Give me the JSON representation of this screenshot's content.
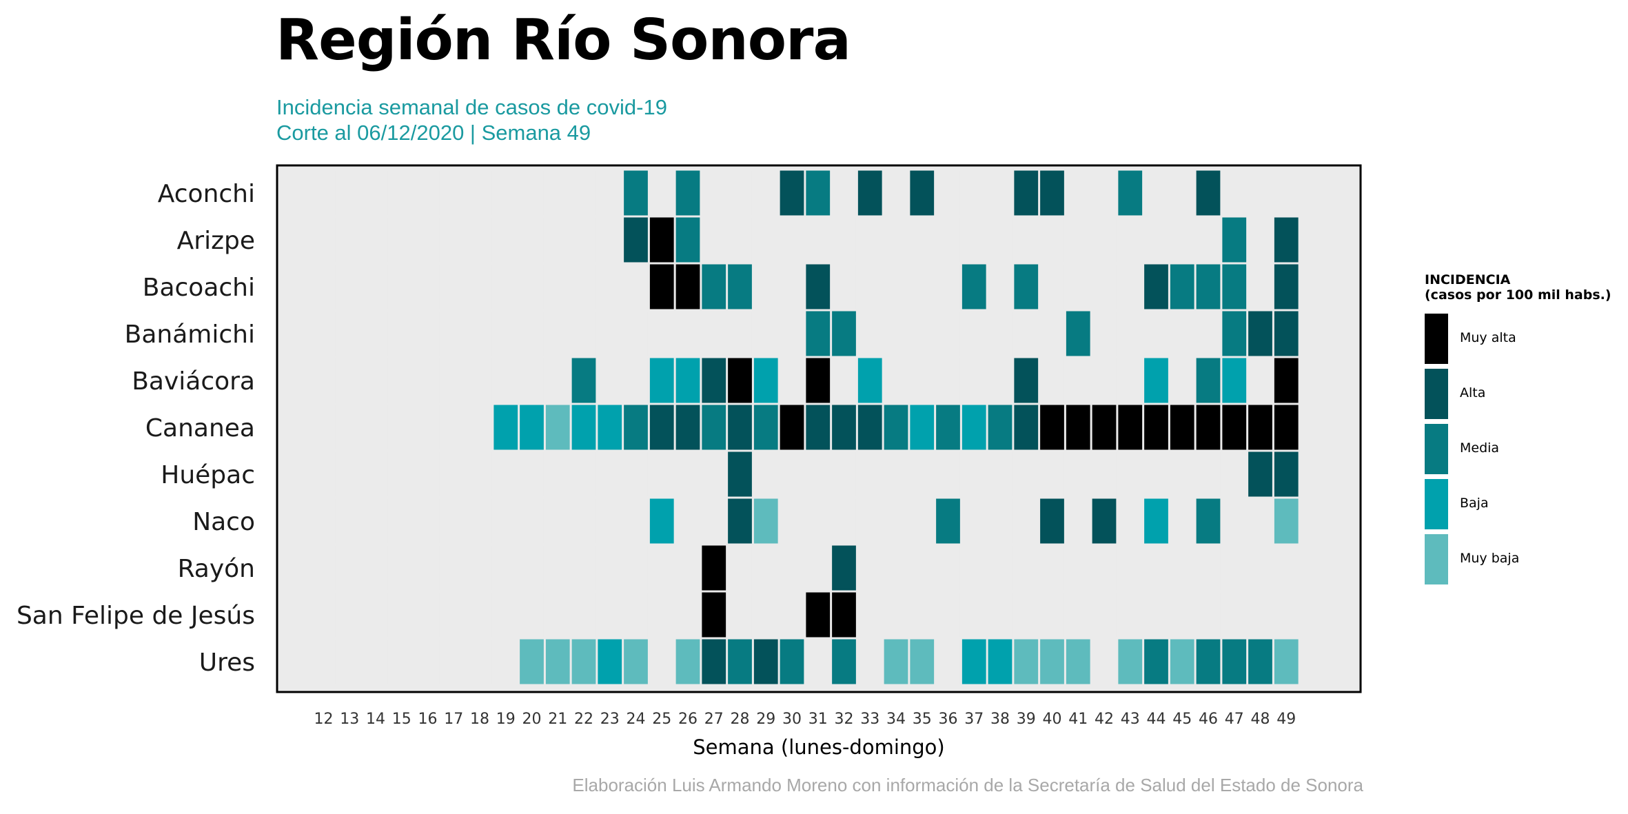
{
  "page": {
    "title": "Región Río Sonora",
    "subtitle_line1": "Incidencia semanal de casos de covid-19",
    "subtitle_line2": "Corte al 06/12/2020 | Semana 49",
    "caption": "Elaboración Luis Armando Moreno con información de la Secretaría de Salud del Estado de Sonora"
  },
  "legend": {
    "title_line1": "INCIDENCIA",
    "title_line2": "(casos por 100 mil habs.)",
    "items": [
      {
        "level": 5,
        "label": "Muy alta",
        "color": "#000000"
      },
      {
        "level": 4,
        "label": "Alta",
        "color": "#03525a"
      },
      {
        "level": 3,
        "label": "Media",
        "color": "#077b82"
      },
      {
        "level": 2,
        "label": "Baja",
        "color": "#00a1ad"
      },
      {
        "level": 1,
        "label": "Muy baja",
        "color": "#5ebbbd"
      }
    ]
  },
  "chart_data": {
    "type": "heatmap",
    "xlabel": "Semana (lunes-domingo)",
    "ylabel": "",
    "empty_color": "#ebebeb",
    "panel_background": "#ebebeb",
    "x": [
      12,
      13,
      14,
      15,
      16,
      17,
      18,
      19,
      20,
      21,
      22,
      23,
      24,
      25,
      26,
      27,
      28,
      29,
      30,
      31,
      32,
      33,
      34,
      35,
      36,
      37,
      38,
      39,
      40,
      41,
      42,
      43,
      44,
      45,
      46,
      47,
      48,
      49
    ],
    "rows": [
      {
        "name": "Aconchi",
        "levels": [
          0,
          0,
          0,
          0,
          0,
          0,
          0,
          0,
          0,
          0,
          0,
          0,
          3,
          0,
          3,
          0,
          0,
          0,
          4,
          3,
          0,
          4,
          0,
          4,
          0,
          0,
          0,
          4,
          4,
          0,
          0,
          3,
          0,
          0,
          4,
          0,
          0,
          0
        ]
      },
      {
        "name": "Arizpe",
        "levels": [
          0,
          0,
          0,
          0,
          0,
          0,
          0,
          0,
          0,
          0,
          0,
          0,
          4,
          5,
          3,
          0,
          0,
          0,
          0,
          0,
          0,
          0,
          0,
          0,
          0,
          0,
          0,
          0,
          0,
          0,
          0,
          0,
          0,
          0,
          0,
          3,
          0,
          4
        ]
      },
      {
        "name": "Bacoachi",
        "levels": [
          0,
          0,
          0,
          0,
          0,
          0,
          0,
          0,
          0,
          0,
          0,
          0,
          0,
          5,
          5,
          3,
          3,
          0,
          0,
          4,
          0,
          0,
          0,
          0,
          0,
          3,
          0,
          3,
          0,
          0,
          0,
          0,
          4,
          3,
          3,
          3,
          0,
          4
        ]
      },
      {
        "name": "Banámichi",
        "levels": [
          0,
          0,
          0,
          0,
          0,
          0,
          0,
          0,
          0,
          0,
          0,
          0,
          0,
          0,
          0,
          0,
          0,
          0,
          0,
          3,
          3,
          0,
          0,
          0,
          0,
          0,
          0,
          0,
          0,
          3,
          0,
          0,
          0,
          0,
          0,
          3,
          4,
          4
        ]
      },
      {
        "name": "Baviácora",
        "levels": [
          0,
          0,
          0,
          0,
          0,
          0,
          0,
          0,
          0,
          0,
          3,
          0,
          0,
          2,
          2,
          4,
          5,
          2,
          0,
          5,
          0,
          2,
          0,
          0,
          0,
          0,
          0,
          4,
          0,
          0,
          0,
          0,
          2,
          0,
          3,
          2,
          0,
          5
        ]
      },
      {
        "name": "Cananea",
        "levels": [
          0,
          0,
          0,
          0,
          0,
          0,
          0,
          2,
          2,
          1,
          2,
          2,
          3,
          4,
          4,
          3,
          4,
          3,
          5,
          4,
          4,
          4,
          3,
          2,
          3,
          2,
          3,
          4,
          5,
          5,
          5,
          5,
          5,
          5,
          5,
          5,
          5,
          5
        ]
      },
      {
        "name": "Huépac",
        "levels": [
          0,
          0,
          0,
          0,
          0,
          0,
          0,
          0,
          0,
          0,
          0,
          0,
          0,
          0,
          0,
          0,
          4,
          0,
          0,
          0,
          0,
          0,
          0,
          0,
          0,
          0,
          0,
          0,
          0,
          0,
          0,
          0,
          0,
          0,
          0,
          0,
          4,
          4
        ]
      },
      {
        "name": "Naco",
        "levels": [
          0,
          0,
          0,
          0,
          0,
          0,
          0,
          0,
          0,
          0,
          0,
          0,
          0,
          2,
          0,
          0,
          4,
          1,
          0,
          0,
          0,
          0,
          0,
          0,
          3,
          0,
          0,
          0,
          4,
          0,
          4,
          0,
          2,
          0,
          3,
          0,
          0,
          1
        ]
      },
      {
        "name": "Rayón",
        "levels": [
          0,
          0,
          0,
          0,
          0,
          0,
          0,
          0,
          0,
          0,
          0,
          0,
          0,
          0,
          0,
          5,
          0,
          0,
          0,
          0,
          4,
          0,
          0,
          0,
          0,
          0,
          0,
          0,
          0,
          0,
          0,
          0,
          0,
          0,
          0,
          0,
          0,
          0
        ]
      },
      {
        "name": "San Felipe de Jesús",
        "levels": [
          0,
          0,
          0,
          0,
          0,
          0,
          0,
          0,
          0,
          0,
          0,
          0,
          0,
          0,
          0,
          5,
          0,
          0,
          0,
          5,
          5,
          0,
          0,
          0,
          0,
          0,
          0,
          0,
          0,
          0,
          0,
          0,
          0,
          0,
          0,
          0,
          0,
          0
        ]
      },
      {
        "name": "Ures",
        "levels": [
          0,
          0,
          0,
          0,
          0,
          0,
          0,
          0,
          1,
          1,
          1,
          2,
          1,
          0,
          1,
          4,
          3,
          4,
          3,
          0,
          3,
          0,
          1,
          1,
          0,
          2,
          2,
          1,
          1,
          1,
          0,
          1,
          3,
          1,
          3,
          3,
          3,
          1
        ]
      }
    ]
  }
}
